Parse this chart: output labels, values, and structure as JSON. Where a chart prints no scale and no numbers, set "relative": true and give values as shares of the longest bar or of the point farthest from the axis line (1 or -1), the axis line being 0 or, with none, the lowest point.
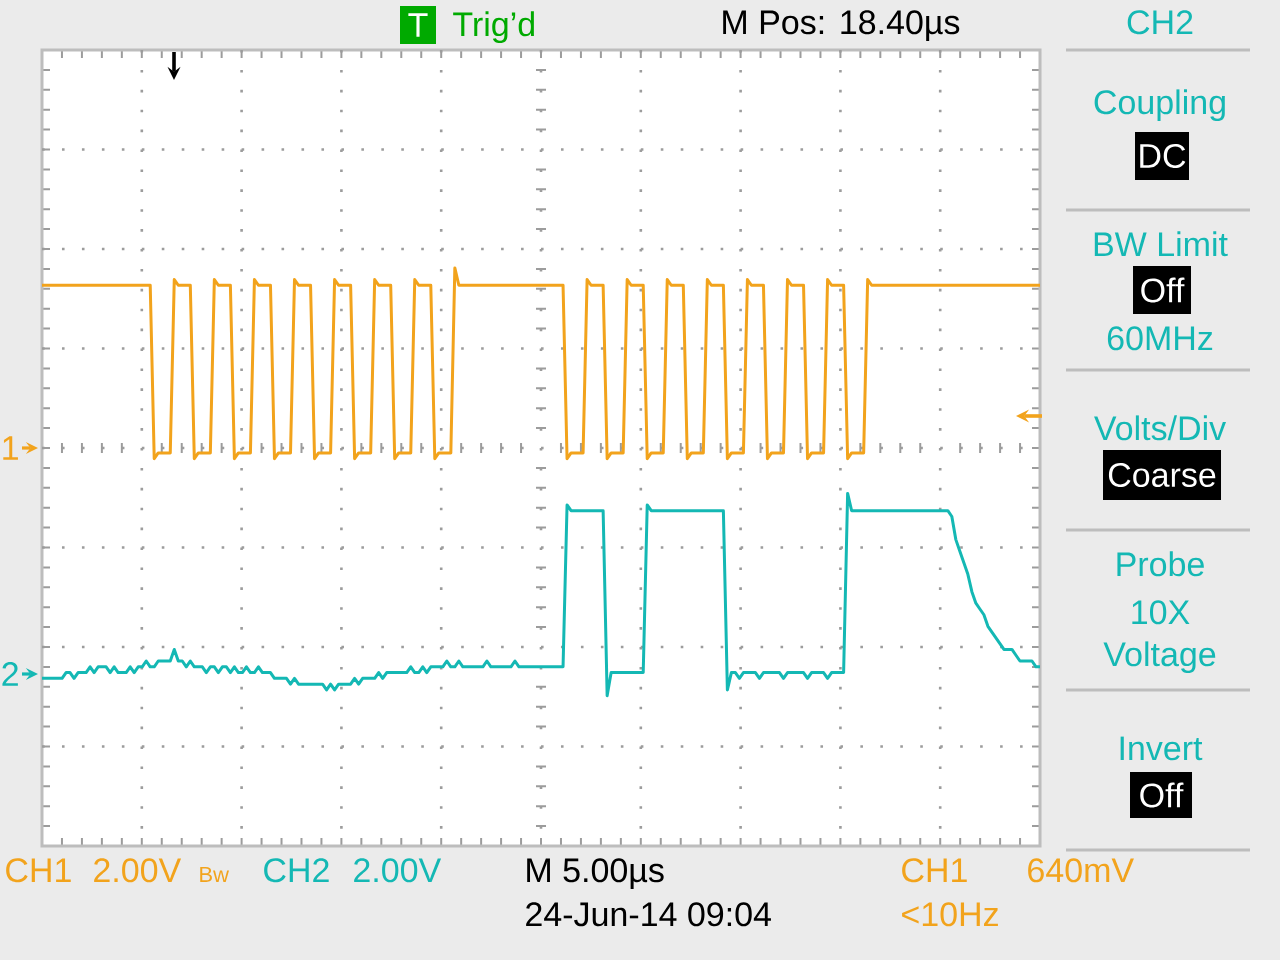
{
  "chart_data": {
    "type": "line",
    "relative": true,
    "grid": true,
    "categories": [
      null,
      null,
      null,
      null,
      null,
      null,
      null,
      null,
      null,
      null,
      null,
      null,
      null,
      null,
      null,
      null,
      null,
      null,
      null,
      null,
      null,
      null,
      null,
      null,
      null,
      null,
      null,
      null,
      null,
      null,
      null,
      null,
      null,
      null,
      null,
      null,
      null,
      null,
      null,
      null,
      null,
      null,
      null,
      null,
      null,
      null,
      null,
      null,
      null,
      null,
      null,
      null,
      null,
      null,
      null,
      null,
      null,
      null,
      null,
      null,
      null,
      null,
      null,
      null,
      null,
      null,
      null,
      null,
      null,
      null,
      null,
      null,
      null,
      null,
      null,
      null,
      null,
      null,
      null,
      null,
      null,
      null,
      null,
      null,
      null,
      null,
      null,
      null,
      null,
      null,
      null,
      null,
      null,
      null,
      null,
      null,
      null,
      null,
      null,
      null,
      null,
      null,
      null,
      null,
      null,
      null,
      null,
      null,
      null,
      null,
      null,
      null,
      null,
      null,
      null,
      null,
      null,
      null,
      null,
      null,
      null,
      null,
      null,
      null,
      null,
      null,
      null,
      null,
      null,
      null,
      null,
      null,
      null,
      null,
      null,
      null,
      null,
      null,
      null,
      null,
      null,
      null,
      null,
      null,
      null,
      null,
      null,
      null,
      null,
      null,
      null,
      null,
      null,
      null,
      null,
      null,
      null,
      null,
      null,
      null,
      null,
      null,
      null,
      null,
      null,
      null,
      null,
      null,
      null,
      null,
      null,
      null,
      null,
      null,
      null,
      null,
      null,
      null,
      null,
      null,
      null,
      null,
      null,
      null,
      null,
      null,
      null,
      null,
      null,
      null,
      null,
      null,
      null,
      null,
      null,
      null,
      null,
      null,
      null,
      null,
      null,
      null,
      null,
      null,
      null,
      null,
      null,
      null,
      null,
      null,
      null,
      null,
      null,
      null,
      null,
      null,
      null,
      null,
      null,
      null,
      null,
      null,
      null,
      null,
      null,
      null,
      null,
      null,
      null,
      null,
      null,
      null,
      null,
      null,
      null,
      null,
      null,
      null,
      null,
      null,
      null,
      null,
      null,
      null,
      null,
      null,
      null,
      null,
      null,
      null
    ],
    "series": [
      {
        "color": "#f2a31c",
        "values": [
          0.97,
          0.97,
          0.97,
          0.97,
          0.97,
          0.97,
          0.97,
          0.97,
          0.97,
          0.97,
          0.97,
          0.97,
          0.97,
          0.97,
          0.97,
          0.97,
          0.97,
          0.97,
          0.97,
          0.97,
          0.97,
          0.97,
          0.97,
          0.97,
          0.97,
          0.97,
          0.97,
          0.97,
          0.67,
          0.68,
          0.68,
          0.68,
          0.68,
          0.98,
          0.97,
          0.97,
          0.97,
          0.97,
          0.67,
          0.68,
          0.68,
          0.68,
          0.68,
          0.98,
          0.97,
          0.97,
          0.97,
          0.97,
          0.67,
          0.68,
          0.68,
          0.68,
          0.68,
          0.98,
          0.97,
          0.97,
          0.97,
          0.97,
          0.67,
          0.68,
          0.68,
          0.68,
          0.68,
          0.98,
          0.97,
          0.97,
          0.97,
          0.97,
          0.67,
          0.68,
          0.68,
          0.68,
          0.68,
          0.98,
          0.97,
          0.97,
          0.97,
          0.97,
          0.67,
          0.68,
          0.68,
          0.68,
          0.68,
          0.98,
          0.97,
          0.97,
          0.97,
          0.97,
          0.67,
          0.68,
          0.68,
          0.68,
          0.68,
          0.98,
          0.97,
          0.97,
          0.97,
          0.97,
          0.67,
          0.68,
          0.68,
          0.68,
          0.68,
          1,
          0.97,
          0.97,
          0.97,
          0.97,
          0.97,
          0.97,
          0.97,
          0.97,
          0.97,
          0.97,
          0.97,
          0.97,
          0.97,
          0.97,
          0.97,
          0.97,
          0.97,
          0.97,
          0.97,
          0.97,
          0.97,
          0.97,
          0.97,
          0.97,
          0.97,
          0.97,
          0.97,
          0.67,
          0.68,
          0.68,
          0.68,
          0.68,
          0.98,
          0.97,
          0.97,
          0.97,
          0.97,
          0.67,
          0.68,
          0.68,
          0.68,
          0.68,
          0.98,
          0.97,
          0.97,
          0.97,
          0.97,
          0.67,
          0.68,
          0.68,
          0.68,
          0.68,
          0.98,
          0.97,
          0.97,
          0.97,
          0.97,
          0.67,
          0.68,
          0.68,
          0.68,
          0.68,
          0.98,
          0.97,
          0.97,
          0.97,
          0.97,
          0.67,
          0.68,
          0.68,
          0.68,
          0.68,
          0.98,
          0.97,
          0.97,
          0.97,
          0.97,
          0.67,
          0.68,
          0.68,
          0.68,
          0.68,
          0.98,
          0.97,
          0.97,
          0.97,
          0.97,
          0.67,
          0.68,
          0.68,
          0.68,
          0.68,
          0.98,
          0.97,
          0.97,
          0.97,
          0.97,
          0.67,
          0.68,
          0.68,
          0.68,
          0.68,
          0.98,
          0.97,
          0.97,
          0.97,
          0.97,
          0.97,
          0.97,
          0.97,
          0.97,
          0.97,
          0.97,
          0.97,
          0.97,
          0.97,
          0.97,
          0.97,
          0.97,
          0.97,
          0.97,
          0.97,
          0.97,
          0.97,
          0.97,
          0.97,
          0.97,
          0.97,
          0.97,
          0.97,
          0.97,
          0.97,
          0.97,
          0.97,
          0.97,
          0.97,
          0.97,
          0.97,
          0.97,
          0.97,
          0.97,
          0.97,
          0.97,
          0.97,
          0.97,
          0.97
        ]
      },
      {
        "color": "#14b8b4",
        "values": [
          0.29,
          0.29,
          0.29,
          0.29,
          0.29,
          0.29,
          0.3,
          0.3,
          0.29,
          0.3,
          0.3,
          0.3,
          0.31,
          0.3,
          0.31,
          0.31,
          0.31,
          0.3,
          0.31,
          0.3,
          0.3,
          0.3,
          0.31,
          0.3,
          0.31,
          0.31,
          0.32,
          0.31,
          0.31,
          0.32,
          0.32,
          0.32,
          0.32,
          0.34,
          0.32,
          0.32,
          0.31,
          0.32,
          0.31,
          0.31,
          0.31,
          0.3,
          0.31,
          0.31,
          0.3,
          0.31,
          0.31,
          0.3,
          0.31,
          0.3,
          0.3,
          0.31,
          0.3,
          0.3,
          0.31,
          0.3,
          0.3,
          0.3,
          0.29,
          0.29,
          0.29,
          0.29,
          0.28,
          0.29,
          0.28,
          0.28,
          0.28,
          0.28,
          0.28,
          0.28,
          0.28,
          0.27,
          0.28,
          0.27,
          0.28,
          0.28,
          0.28,
          0.28,
          0.29,
          0.28,
          0.29,
          0.29,
          0.29,
          0.29,
          0.3,
          0.29,
          0.3,
          0.3,
          0.3,
          0.3,
          0.3,
          0.3,
          0.31,
          0.3,
          0.3,
          0.31,
          0.3,
          0.31,
          0.31,
          0.31,
          0.31,
          0.32,
          0.31,
          0.31,
          0.32,
          0.31,
          0.31,
          0.31,
          0.31,
          0.31,
          0.31,
          0.32,
          0.31,
          0.31,
          0.31,
          0.31,
          0.31,
          0.31,
          0.32,
          0.31,
          0.31,
          0.31,
          0.31,
          0.31,
          0.31,
          0.31,
          0.31,
          0.31,
          0.31,
          0.31,
          0.31,
          0.59,
          0.58,
          0.58,
          0.58,
          0.58,
          0.58,
          0.58,
          0.58,
          0.58,
          0.58,
          0.26,
          0.3,
          0.3,
          0.3,
          0.3,
          0.3,
          0.3,
          0.3,
          0.3,
          0.3,
          0.59,
          0.58,
          0.58,
          0.58,
          0.58,
          0.58,
          0.58,
          0.58,
          0.58,
          0.58,
          0.58,
          0.58,
          0.58,
          0.58,
          0.58,
          0.58,
          0.58,
          0.58,
          0.58,
          0.58,
          0.27,
          0.3,
          0.3,
          0.29,
          0.3,
          0.3,
          0.3,
          0.3,
          0.29,
          0.3,
          0.3,
          0.3,
          0.3,
          0.3,
          0.29,
          0.3,
          0.3,
          0.3,
          0.3,
          0.3,
          0.29,
          0.3,
          0.3,
          0.3,
          0.3,
          0.29,
          0.3,
          0.3,
          0.3,
          0.3,
          0.61,
          0.58,
          0.58,
          0.58,
          0.58,
          0.58,
          0.58,
          0.58,
          0.58,
          0.58,
          0.58,
          0.58,
          0.58,
          0.58,
          0.58,
          0.58,
          0.58,
          0.58,
          0.58,
          0.58,
          0.58,
          0.58,
          0.58,
          0.58,
          0.58,
          0.58,
          0.57,
          0.53,
          0.51,
          0.49,
          0.47,
          0.44,
          0.42,
          0.41,
          0.4,
          0.38,
          0.37,
          0.36,
          0.35,
          0.34,
          0.34,
          0.34,
          0.33,
          0.32,
          0.32,
          0.32,
          0.32,
          0.31,
          0.31
        ]
      }
    ],
    "annotations": [
      "T",
      "Trig’d",
      "M Pos: 18.40µs",
      "CH2",
      "Coupling",
      "DC",
      "BW Limit",
      "Off",
      "60MHz",
      "Volts/Div",
      "Coarse",
      "Probe",
      "10X",
      "Voltage",
      "Invert",
      "Off",
      "CH1",
      "2.00V",
      "Bw",
      "CH2",
      "2.00V",
      "M 5.00µs",
      "24-Jun-14 09:04",
      "CH1",
      "640mV",
      "<10Hz",
      "1",
      "2"
    ]
  }
}
